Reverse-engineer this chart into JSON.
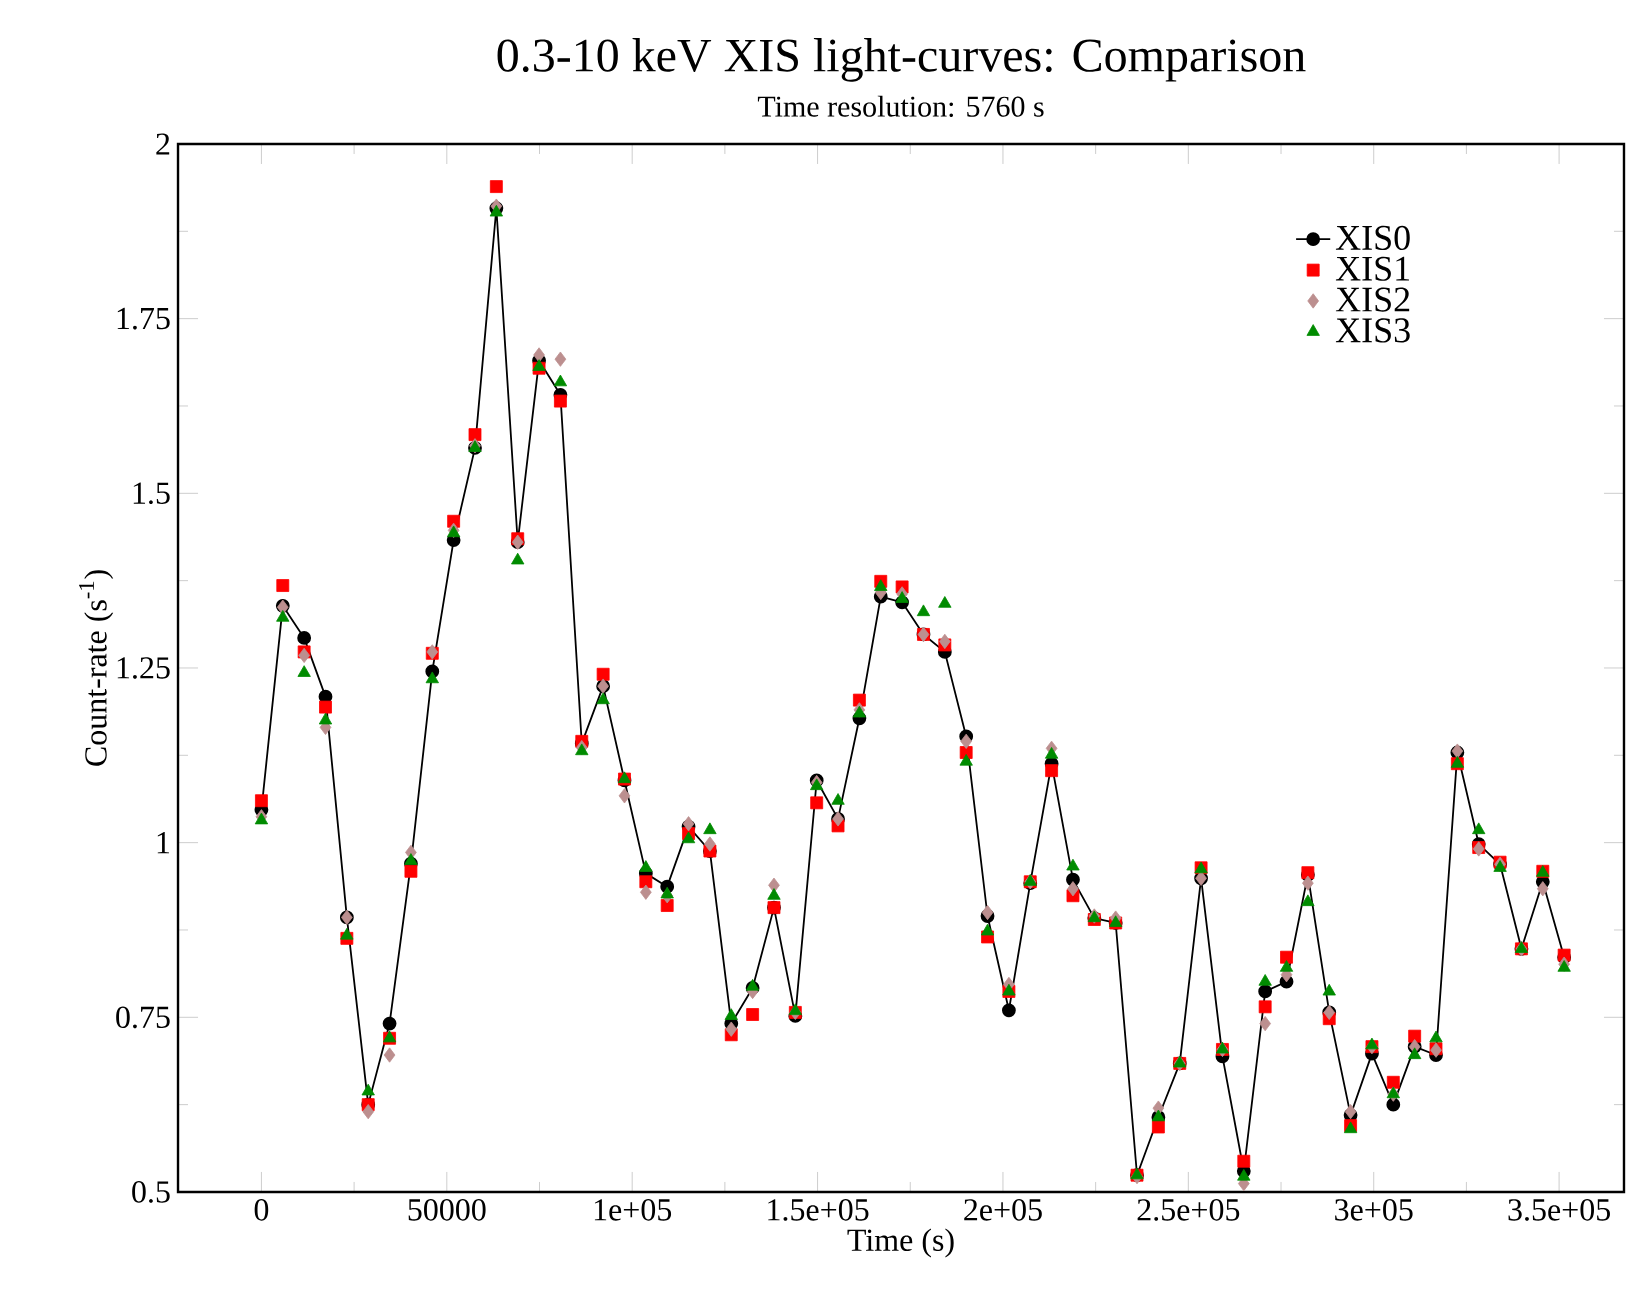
{
  "chart_data": {
    "type": "line",
    "title": "0.3-10 keV XIS light-curves: Comparison",
    "subtitle": "Time resolution: 5760 s",
    "xlabel": "Time (s)",
    "ylabel": "Count-rate (s$^{-1}$)",
    "x": [
      0,
      5760,
      11520,
      17280,
      23040,
      28800,
      34560,
      40320,
      46080,
      51840,
      57600,
      63360,
      69120,
      74880,
      80640,
      86400,
      92160,
      97920,
      103680,
      109440,
      115200,
      120960,
      126720,
      132480,
      138240,
      144000,
      149760,
      155520,
      161280,
      167040,
      172800,
      178560,
      184320,
      190080,
      195840,
      201600,
      207360,
      213120,
      218880,
      224640,
      230400,
      236160,
      241920,
      247680,
      253440,
      259200,
      264960,
      270720,
      276480,
      282240,
      288000,
      293760,
      299520,
      305280,
      311040,
      316800,
      322560,
      328320,
      334080,
      339840,
      345600,
      351360
    ],
    "series": [
      {
        "name": "XIS0",
        "marker": "circle",
        "line_style": "solid",
        "color": "#000000",
        "values": [
          1.047,
          1.339,
          1.293,
          1.209,
          0.893,
          0.625,
          0.741,
          0.97,
          1.245,
          1.433,
          1.565,
          1.908,
          1.43,
          1.69,
          1.641,
          1.142,
          1.224,
          1.089,
          0.956,
          0.937,
          1.023,
          0.988,
          0.741,
          0.792,
          0.907,
          0.752,
          1.089,
          1.034,
          1.178,
          1.352,
          1.344,
          1.298,
          1.273,
          1.152,
          0.895,
          0.76,
          0.942,
          1.113,
          0.947,
          0.892,
          0.885,
          0.524,
          0.607,
          0.684,
          0.949,
          0.694,
          0.53,
          0.787,
          0.801,
          0.954,
          0.757,
          0.61,
          0.698,
          0.625,
          0.708,
          0.696,
          1.129,
          0.998,
          0.969,
          0.848,
          0.944,
          0.836
        ]
      },
      {
        "name": "XIS1",
        "type": "scatter",
        "marker": "square",
        "color": "#ff0000",
        "values": [
          1.06,
          1.368,
          1.273,
          1.194,
          0.863,
          0.625,
          0.72,
          0.959,
          1.271,
          1.46,
          1.584,
          1.939,
          1.435,
          1.679,
          1.632,
          1.145,
          1.241,
          1.091,
          0.944,
          0.91,
          1.013,
          0.988,
          0.725,
          0.754,
          0.907,
          0.757,
          1.057,
          1.024,
          1.204,
          1.374,
          1.366,
          1.298,
          1.283,
          1.129,
          0.865,
          0.787,
          0.944,
          1.103,
          0.924,
          0.89,
          0.885,
          0.524,
          0.593,
          0.684,
          0.964,
          0.704,
          0.544,
          0.765,
          0.836,
          0.957,
          0.748,
          0.595,
          0.708,
          0.657,
          0.723,
          0.705,
          1.113,
          0.993,
          0.972,
          0.848,
          0.959,
          0.839
        ]
      },
      {
        "name": "XIS2",
        "type": "scatter",
        "marker": "diamond",
        "color": "#bc8f8f",
        "values": [
          1.037,
          1.337,
          1.268,
          1.165,
          0.893,
          0.615,
          0.696,
          0.986,
          1.273,
          1.447,
          1.568,
          1.911,
          1.43,
          1.698,
          1.692,
          1.136,
          1.224,
          1.067,
          0.929,
          0.924,
          1.027,
          0.998,
          0.733,
          0.787,
          0.939,
          0.757,
          1.086,
          1.034,
          1.19,
          1.358,
          1.356,
          1.298,
          1.288,
          1.145,
          0.9,
          0.797,
          0.944,
          1.135,
          0.934,
          0.895,
          0.892,
          0.522,
          0.62,
          0.684,
          0.949,
          0.704,
          0.512,
          0.741,
          0.811,
          0.942,
          0.757,
          0.615,
          0.708,
          0.64,
          0.708,
          0.703,
          1.131,
          0.991,
          0.969,
          0.848,
          0.934,
          0.826
        ]
      },
      {
        "name": "XIS3",
        "type": "scatter",
        "marker": "triangle",
        "color": "#008b00",
        "values": [
          1.032,
          1.322,
          1.243,
          1.175,
          0.867,
          0.644,
          0.72,
          0.974,
          1.234,
          1.443,
          1.565,
          1.902,
          1.404,
          1.681,
          1.659,
          1.131,
          1.204,
          1.091,
          0.964,
          0.926,
          1.005,
          1.018,
          0.752,
          0.794,
          0.924,
          0.759,
          1.081,
          1.06,
          1.185,
          1.366,
          1.349,
          1.33,
          1.342,
          1.116,
          0.873,
          0.787,
          0.944,
          1.126,
          0.966,
          0.892,
          0.885,
          0.524,
          0.607,
          0.684,
          0.962,
          0.704,
          0.522,
          0.801,
          0.821,
          0.915,
          0.787,
          0.59,
          0.71,
          0.64,
          0.696,
          0.72,
          1.113,
          1.018,
          0.964,
          0.848,
          0.957,
          0.821
        ]
      }
    ],
    "xlim": [
      -22500,
      367500
    ],
    "ylim": [
      0.5,
      2
    ],
    "xticks": [
      0,
      {
        "value": 25000,
        "label": null
      },
      50000,
      {
        "value": 75000,
        "label": null
      },
      {
        "value": 100000,
        "label": "1e+05"
      },
      {
        "value": 125000,
        "label": null
      },
      {
        "value": 150000,
        "label": "1.5e+05"
      },
      {
        "value": 175000,
        "label": null
      },
      {
        "value": 200000,
        "label": "2e+05"
      },
      {
        "value": 225000,
        "label": null
      },
      {
        "value": 250000,
        "label": "2.5e+05"
      },
      {
        "value": 275000,
        "label": null
      },
      {
        "value": 300000,
        "label": "3e+05"
      },
      {
        "value": 325000,
        "label": null
      },
      {
        "value": 350000,
        "label": "3.5e+05"
      }
    ],
    "yticks": [
      0.5,
      {
        "value": 0.625,
        "label": null
      },
      0.75,
      {
        "value": 0.875,
        "label": null
      },
      1,
      {
        "value": 1.125,
        "label": null
      },
      1.25,
      {
        "value": 1.375,
        "label": null
      },
      1.5,
      {
        "value": 1.625,
        "label": null
      },
      1.75,
      {
        "value": 1.875,
        "label": null
      },
      2
    ],
    "grid": false,
    "legend": "top right"
  }
}
